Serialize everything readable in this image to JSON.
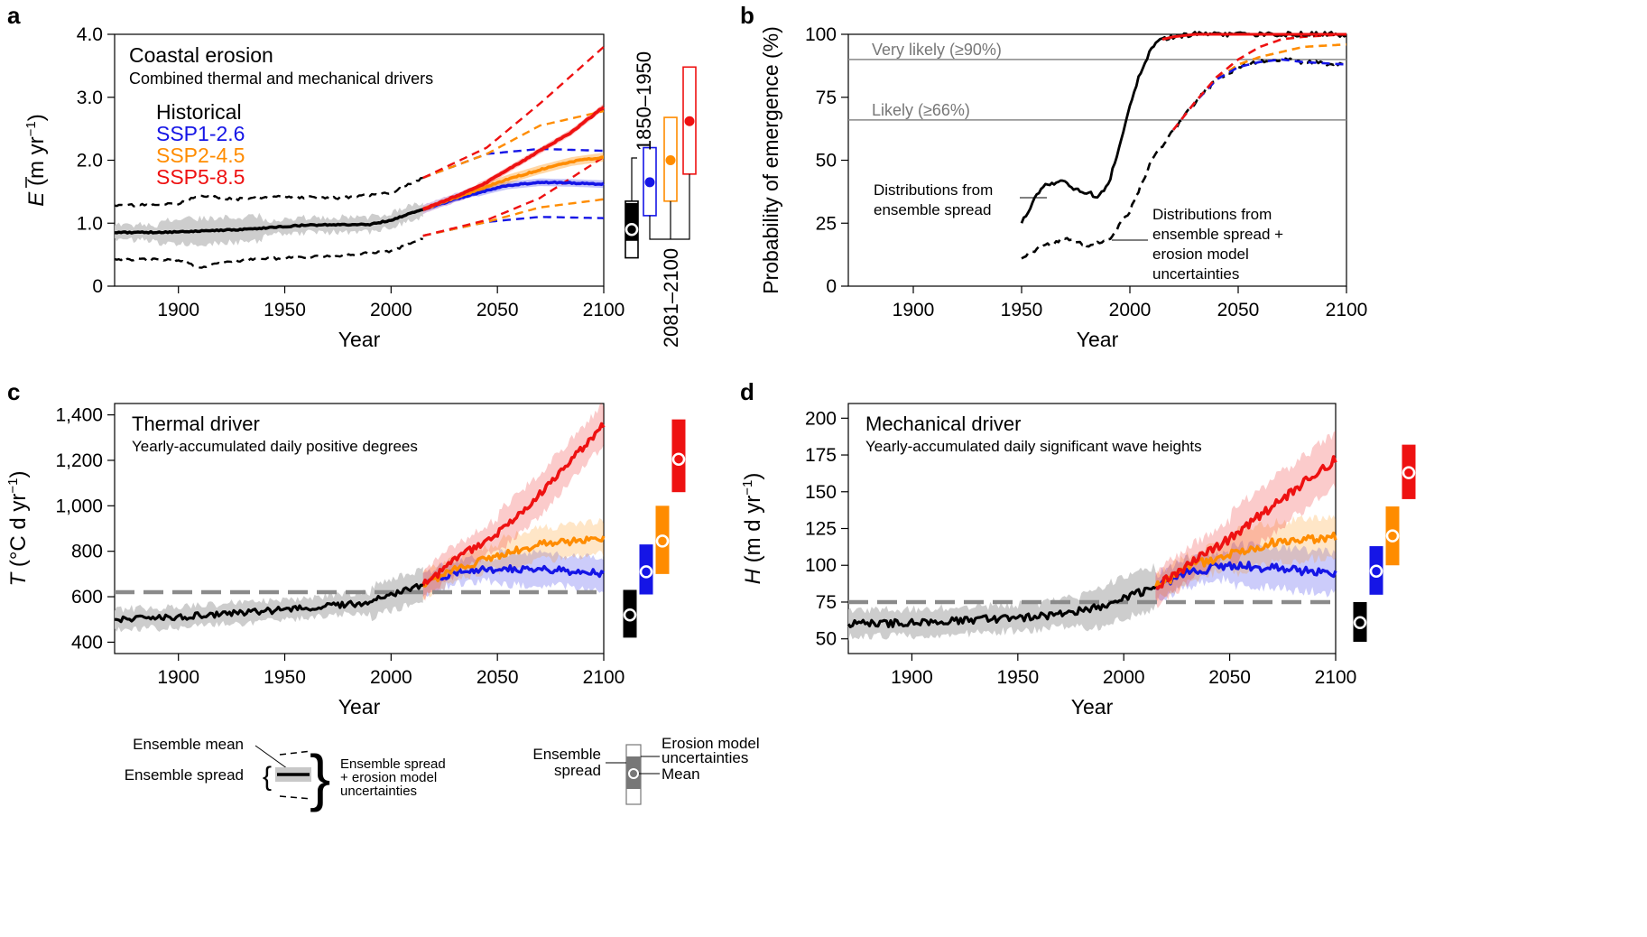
{
  "colors": {
    "historical": "#000000",
    "ssp126": "#1515e6",
    "ssp245": "#ff8c00",
    "ssp585": "#ee1111",
    "spread": "#c8c8c8",
    "grey_line": "#888888"
  },
  "chart_data": [
    {
      "panel": "a",
      "type": "line",
      "title": "Coastal erosion",
      "subtitle": "Combined thermal and mechanical drivers",
      "xlabel": "Year",
      "ylabel_symbol": "E",
      "ylabel_unit": "(m yr",
      "ylabel_exp": "−1",
      "xlim": [
        1870,
        2100
      ],
      "ylim": [
        0,
        4.0
      ],
      "xticks": [
        "1900",
        "1950",
        "2000",
        "2050",
        "2100"
      ],
      "yticks": [
        "0",
        "1.0",
        "2.0",
        "3.0",
        "4.0"
      ],
      "legend": [
        "Historical",
        "SSP1-2.6",
        "SSP2-4.5",
        "SSP5-8.5"
      ],
      "series": [
        {
          "name": "Historical",
          "x": [
            1870,
            1900,
            1930,
            1960,
            1990,
            2000,
            2015
          ],
          "values": [
            0.85,
            0.86,
            0.9,
            0.97,
            0.98,
            1.05,
            1.22
          ]
        },
        {
          "name": "SSP1-2.6",
          "x": [
            2015,
            2030,
            2045,
            2055,
            2070,
            2085,
            2100
          ],
          "values": [
            1.22,
            1.38,
            1.52,
            1.6,
            1.65,
            1.64,
            1.62
          ]
        },
        {
          "name": "SSP2-4.5",
          "x": [
            2015,
            2030,
            2045,
            2055,
            2070,
            2085,
            2100
          ],
          "values": [
            1.22,
            1.4,
            1.58,
            1.7,
            1.85,
            1.98,
            2.05
          ]
        },
        {
          "name": "SSP5-8.5",
          "x": [
            2015,
            2030,
            2045,
            2055,
            2070,
            2085,
            2100
          ],
          "values": [
            1.22,
            1.42,
            1.65,
            1.85,
            2.15,
            2.45,
            2.85
          ]
        }
      ],
      "uncertainty_dashed": [
        {
          "name": "Historical upper",
          "x": [
            1870,
            1900,
            1910,
            1925,
            1950,
            1975,
            2000,
            2015
          ],
          "values": [
            1.28,
            1.3,
            1.45,
            1.38,
            1.42,
            1.4,
            1.48,
            1.72
          ]
        },
        {
          "name": "Historical lower",
          "x": [
            1870,
            1900,
            1910,
            1925,
            1950,
            1975,
            2000,
            2015
          ],
          "values": [
            0.43,
            0.42,
            0.3,
            0.4,
            0.45,
            0.48,
            0.56,
            0.75
          ]
        },
        {
          "name": "SSP1-2.6 upper",
          "x": [
            2015,
            2045,
            2070,
            2100
          ],
          "values": [
            1.72,
            2.1,
            2.18,
            2.15
          ]
        },
        {
          "name": "SSP1-2.6 lower",
          "x": [
            2015,
            2045,
            2070,
            2100
          ],
          "values": [
            0.8,
            1.02,
            1.1,
            1.08
          ]
        },
        {
          "name": "SSP2-4.5 upper",
          "x": [
            2015,
            2045,
            2070,
            2100
          ],
          "values": [
            1.72,
            2.1,
            2.55,
            2.78
          ]
        },
        {
          "name": "SSP2-4.5 lower",
          "x": [
            2015,
            2045,
            2070,
            2100
          ],
          "values": [
            0.8,
            1.02,
            1.25,
            1.38
          ]
        },
        {
          "name": "SSP5-8.5 upper",
          "x": [
            2015,
            2045,
            2070,
            2100
          ],
          "values": [
            1.72,
            2.2,
            2.9,
            3.8
          ]
        },
        {
          "name": "SSP5-8.5 lower",
          "x": [
            2015,
            2045,
            2070,
            2100
          ],
          "values": [
            0.8,
            1.05,
            1.4,
            2.05
          ]
        }
      ],
      "period_labels": [
        "1850–1950",
        "2081–2100"
      ],
      "side_boxes": [
        {
          "name": "1850–1950",
          "outer": [
            0.45,
            1.35
          ],
          "inner": [
            0.72,
            1.32
          ],
          "mean": 0.9
        },
        {
          "name": "SSP1-2.6",
          "outer": [
            1.12,
            2.2
          ],
          "mean": 1.65
        },
        {
          "name": "SSP2-4.5",
          "outer": [
            1.35,
            2.68
          ],
          "mean": 2.0
        },
        {
          "name": "SSP5-8.5",
          "outer": [
            1.78,
            3.48
          ],
          "mean": 2.62
        }
      ]
    },
    {
      "panel": "b",
      "type": "line",
      "xlabel": "Year",
      "ylabel": "Probability of emergence (%)",
      "xlim": [
        1870,
        2100
      ],
      "ylim": [
        0,
        100
      ],
      "xticks": [
        "1900",
        "1950",
        "2000",
        "2050",
        "2100"
      ],
      "yticks": [
        "0",
        "25",
        "50",
        "75",
        "100"
      ],
      "thresholds": [
        {
          "label": "Very likely (≥90%)",
          "value": 90
        },
        {
          "label": "Likely (≥66%)",
          "value": 66
        }
      ],
      "annotations": [
        "Distributions from",
        "ensemble spread",
        "Distributions from",
        "ensemble spread +",
        "erosion model",
        "uncertainties"
      ],
      "series": [
        {
          "name": "Ensemble spread",
          "x": [
            1950,
            1955,
            1960,
            1965,
            1970,
            1975,
            1980,
            1985,
            1990,
            1995,
            2000,
            2005,
            2010,
            2015,
            2020,
            2030,
            2100
          ],
          "values": [
            25,
            33,
            40,
            41,
            42,
            38,
            37,
            36,
            40,
            55,
            72,
            85,
            95,
            98,
            99,
            100,
            100
          ]
        },
        {
          "name": "Ensemble spread + uncertainties SSP1-2.6",
          "x": [
            1950,
            1960,
            1970,
            1980,
            1990,
            2000,
            2010,
            2020,
            2030,
            2040,
            2050,
            2060,
            2070,
            2080,
            2100
          ],
          "values": [
            11,
            16,
            19,
            16,
            18,
            30,
            50,
            62,
            73,
            82,
            87,
            89,
            90,
            89,
            88
          ]
        },
        {
          "name": "Ensemble spread + uncertainties SSP2-4.5",
          "x": [
            2020,
            2030,
            2040,
            2050,
            2060,
            2070,
            2080,
            2100
          ],
          "values": [
            62,
            73,
            82,
            88,
            91,
            93,
            95,
            96
          ]
        },
        {
          "name": "Ensemble spread + uncertainties SSP5-8.5",
          "x": [
            2020,
            2030,
            2040,
            2050,
            2060,
            2070,
            2080,
            2100
          ],
          "values": [
            62,
            73,
            83,
            90,
            95,
            98,
            99,
            100
          ]
        }
      ]
    },
    {
      "panel": "c",
      "type": "line",
      "title": "Thermal driver",
      "subtitle": "Yearly-accumulated daily positive degrees",
      "xlabel": "Year",
      "ylabel_symbol": "T",
      "ylabel_unit": "(°C d yr",
      "ylabel_exp": "−1",
      "xlim": [
        1870,
        2100
      ],
      "ylim": [
        350,
        1450
      ],
      "xticks": [
        "1900",
        "1950",
        "2000",
        "2050",
        "2100"
      ],
      "yticks": [
        "400",
        "600",
        "800",
        "1,000",
        "1,200",
        "1,400"
      ],
      "reference_dashed": 620,
      "series": [
        {
          "name": "Historical",
          "x": [
            1870,
            1900,
            1930,
            1960,
            1990,
            2000,
            2015
          ],
          "values": [
            500,
            510,
            530,
            550,
            575,
            610,
            650
          ]
        },
        {
          "name": "SSP1-2.6",
          "x": [
            2015,
            2030,
            2050,
            2070,
            2100
          ],
          "values": [
            650,
            710,
            720,
            725,
            700
          ]
        },
        {
          "name": "SSP2-4.5",
          "x": [
            2015,
            2030,
            2050,
            2070,
            2100
          ],
          "values": [
            650,
            720,
            780,
            830,
            860
          ]
        },
        {
          "name": "SSP5-8.5",
          "x": [
            2015,
            2030,
            2050,
            2070,
            2100
          ],
          "values": [
            650,
            760,
            880,
            1050,
            1360
          ]
        }
      ],
      "side_boxes": [
        {
          "name": "1850–1950",
          "outer": [
            420,
            630
          ],
          "mean": 520
        },
        {
          "name": "SSP1-2.6",
          "outer": [
            610,
            830
          ],
          "mean": 710
        },
        {
          "name": "SSP2-4.5",
          "outer": [
            700,
            1000
          ],
          "mean": 845
        },
        {
          "name": "SSP5-8.5",
          "outer": [
            1060,
            1380
          ],
          "mean": 1205
        }
      ]
    },
    {
      "panel": "d",
      "type": "line",
      "title": "Mechanical driver",
      "subtitle": "Yearly-accumulated daily significant wave heights",
      "xlabel": "Year",
      "ylabel_symbol": "H",
      "ylabel_unit": "(m d yr",
      "ylabel_exp": "−1",
      "xlim": [
        1870,
        2100
      ],
      "ylim": [
        40,
        210
      ],
      "xticks": [
        "1900",
        "1950",
        "2000",
        "2050",
        "2100"
      ],
      "yticks": [
        "50",
        "75",
        "100",
        "125",
        "150",
        "175",
        "200"
      ],
      "reference_dashed": 75,
      "series": [
        {
          "name": "Historical",
          "x": [
            1870,
            1900,
            1930,
            1960,
            1990,
            2000,
            2015
          ],
          "values": [
            60,
            61,
            63,
            65,
            72,
            78,
            85
          ]
        },
        {
          "name": "SSP1-2.6",
          "x": [
            2015,
            2030,
            2050,
            2070,
            2100
          ],
          "values": [
            85,
            95,
            100,
            98,
            95
          ]
        },
        {
          "name": "SSP2-4.5",
          "x": [
            2015,
            2030,
            2050,
            2070,
            2100
          ],
          "values": [
            85,
            98,
            108,
            115,
            120
          ]
        },
        {
          "name": "SSP5-8.5",
          "x": [
            2015,
            2030,
            2050,
            2070,
            2100
          ],
          "values": [
            85,
            100,
            118,
            140,
            172
          ]
        }
      ],
      "side_boxes": [
        {
          "name": "1850–1950",
          "outer": [
            48,
            75
          ],
          "mean": 61
        },
        {
          "name": "SSP1-2.6",
          "outer": [
            80,
            113
          ],
          "mean": 96
        },
        {
          "name": "SSP2-4.5",
          "outer": [
            100,
            140
          ],
          "mean": 120
        },
        {
          "name": "SSP5-8.5",
          "outer": [
            145,
            182
          ],
          "mean": 163
        }
      ]
    }
  ],
  "legend_key": {
    "mean_label": "Ensemble mean",
    "spread_label": "Ensemble spread",
    "spread_plus_label_1": "Ensemble spread",
    "spread_plus_label_2": "+ erosion model",
    "spread_plus_label_3": "uncertainties",
    "box_spread_1": "Ensemble",
    "box_spread_2": "spread",
    "box_erosion_1": "Erosion model",
    "box_erosion_2": "uncertainties",
    "box_mean": "Mean"
  },
  "panel_letters": [
    "a",
    "b",
    "c",
    "d"
  ]
}
